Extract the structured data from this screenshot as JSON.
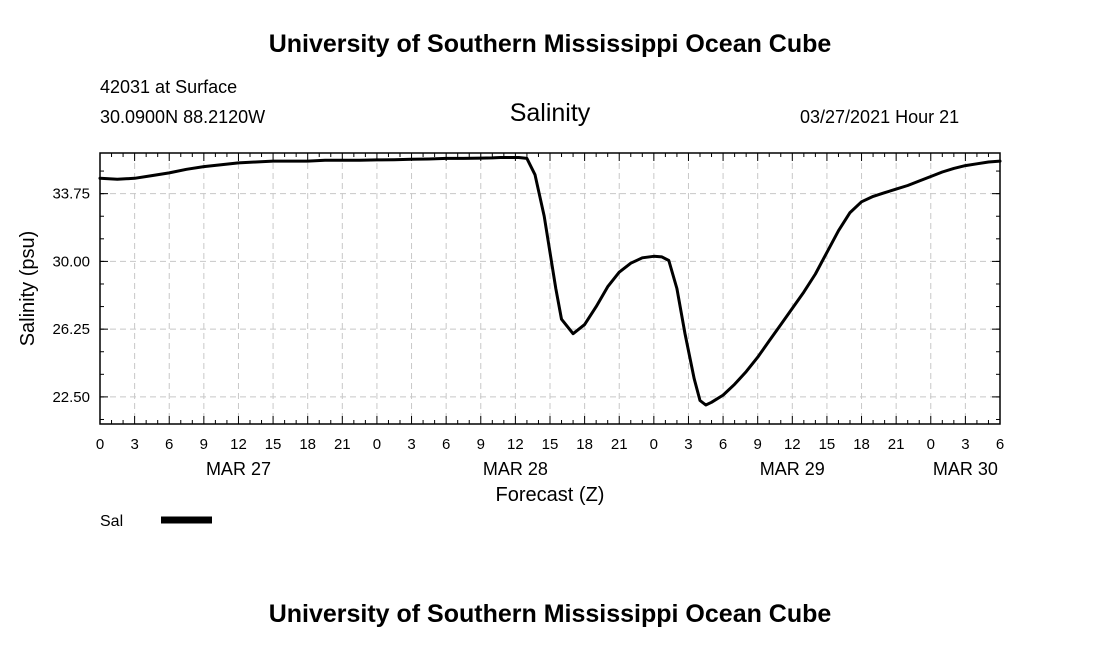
{
  "header": {
    "title": "University of Southern Mississippi Ocean Cube",
    "station": "42031 at Surface",
    "coords": "30.0900N  88.2120W",
    "datetime": "03/27/2021 Hour 21"
  },
  "footer": {
    "title": "University of Southern Mississippi Ocean Cube"
  },
  "chart_data": {
    "type": "line",
    "title": "Salinity",
    "xlabel": "Forecast (Z)",
    "ylabel": "Salinity (psu)",
    "xlim": [
      0,
      78
    ],
    "ylim": [
      21.0,
      36.0
    ],
    "y_ticks": [
      22.5,
      26.25,
      30.0,
      33.75
    ],
    "y_tick_labels": [
      "22.50",
      "26.25",
      "30.00",
      "33.75"
    ],
    "x_ticks": [
      0,
      3,
      6,
      9,
      12,
      15,
      18,
      21,
      24,
      27,
      30,
      33,
      36,
      39,
      42,
      45,
      48,
      51,
      54,
      57,
      60,
      63,
      66,
      69,
      72,
      75,
      78
    ],
    "x_tick_labels": [
      "0",
      "3",
      "6",
      "9",
      "12",
      "15",
      "18",
      "21",
      "0",
      "3",
      "6",
      "9",
      "12",
      "15",
      "18",
      "21",
      "0",
      "3",
      "6",
      "9",
      "12",
      "15",
      "18",
      "21",
      "0",
      "3",
      "6"
    ],
    "date_labels": [
      {
        "x": 12,
        "label": "MAR 27"
      },
      {
        "x": 36,
        "label": "MAR 28"
      },
      {
        "x": 60,
        "label": "MAR 29"
      },
      {
        "x": 75,
        "label": "MAR 30"
      }
    ],
    "grid": true,
    "legend_label": "Sal",
    "series": [
      {
        "name": "Sal",
        "color": "#000000",
        "x": [
          0,
          1.5,
          3,
          4.5,
          6,
          7.5,
          9,
          10.5,
          12,
          13.5,
          15,
          16.5,
          18,
          19.5,
          21,
          22.5,
          24,
          25.5,
          27,
          28.5,
          30,
          31.5,
          33,
          34,
          34.7,
          35.5,
          36.3,
          37,
          37.7,
          38.5,
          39,
          39.5,
          40,
          41,
          42,
          43,
          44,
          45,
          46,
          47,
          48,
          48.7,
          49.3,
          50,
          50.7,
          51.5,
          52,
          52.5,
          53,
          54,
          55,
          56,
          57,
          58,
          59,
          60,
          61,
          62,
          63,
          64,
          65,
          66,
          67,
          68,
          69,
          70,
          71,
          72,
          73,
          74,
          75,
          76,
          77,
          78
        ],
        "values": [
          34.6,
          34.55,
          34.6,
          34.75,
          34.9,
          35.1,
          35.25,
          35.35,
          35.45,
          35.5,
          35.55,
          35.55,
          35.55,
          35.6,
          35.6,
          35.6,
          35.62,
          35.63,
          35.65,
          35.67,
          35.7,
          35.7,
          35.72,
          35.73,
          35.75,
          35.75,
          35.75,
          35.7,
          34.8,
          32.5,
          30.5,
          28.5,
          26.8,
          26.0,
          26.5,
          27.5,
          28.6,
          29.4,
          29.9,
          30.2,
          30.28,
          30.25,
          30.05,
          28.5,
          26.0,
          23.5,
          22.3,
          22.05,
          22.2,
          22.6,
          23.2,
          23.9,
          24.7,
          25.6,
          26.5,
          27.4,
          28.3,
          29.3,
          30.5,
          31.7,
          32.7,
          33.3,
          33.6,
          33.8,
          34.0,
          34.2,
          34.45,
          34.7,
          34.95,
          35.15,
          35.3,
          35.4,
          35.5,
          35.55
        ]
      }
    ]
  }
}
